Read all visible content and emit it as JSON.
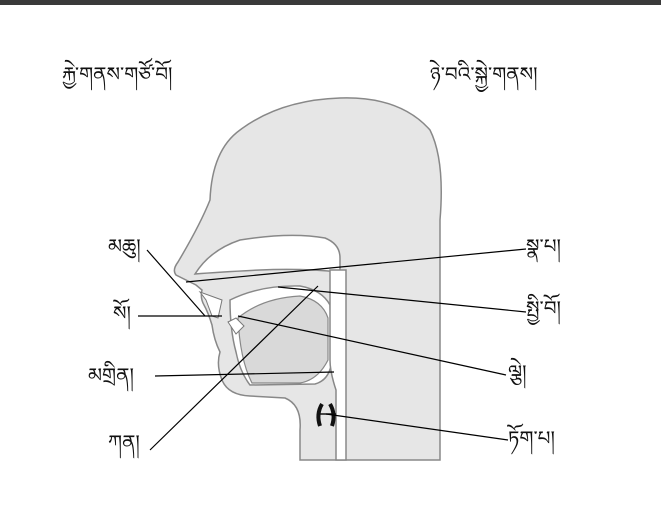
{
  "heading_left": "རྐྱེ་གནས་གཙོ་བོ།",
  "heading_right": "ཉེ་བའི་སྐྱེ་གནས།",
  "labels_left": [
    "མཆུ།",
    "སོ།",
    "མགྲིན།",
    "ཀན།"
  ],
  "labels_right": [
    "སྣ་པ།",
    "སྤྱི་བོ།",
    "ལྕེ།",
    "ཏོག་པ།"
  ],
  "colors": {
    "head_fill": "#e6e6e6",
    "head_stroke": "#888888",
    "cavity_fill": "#ffffff",
    "pointer": "#000000"
  }
}
